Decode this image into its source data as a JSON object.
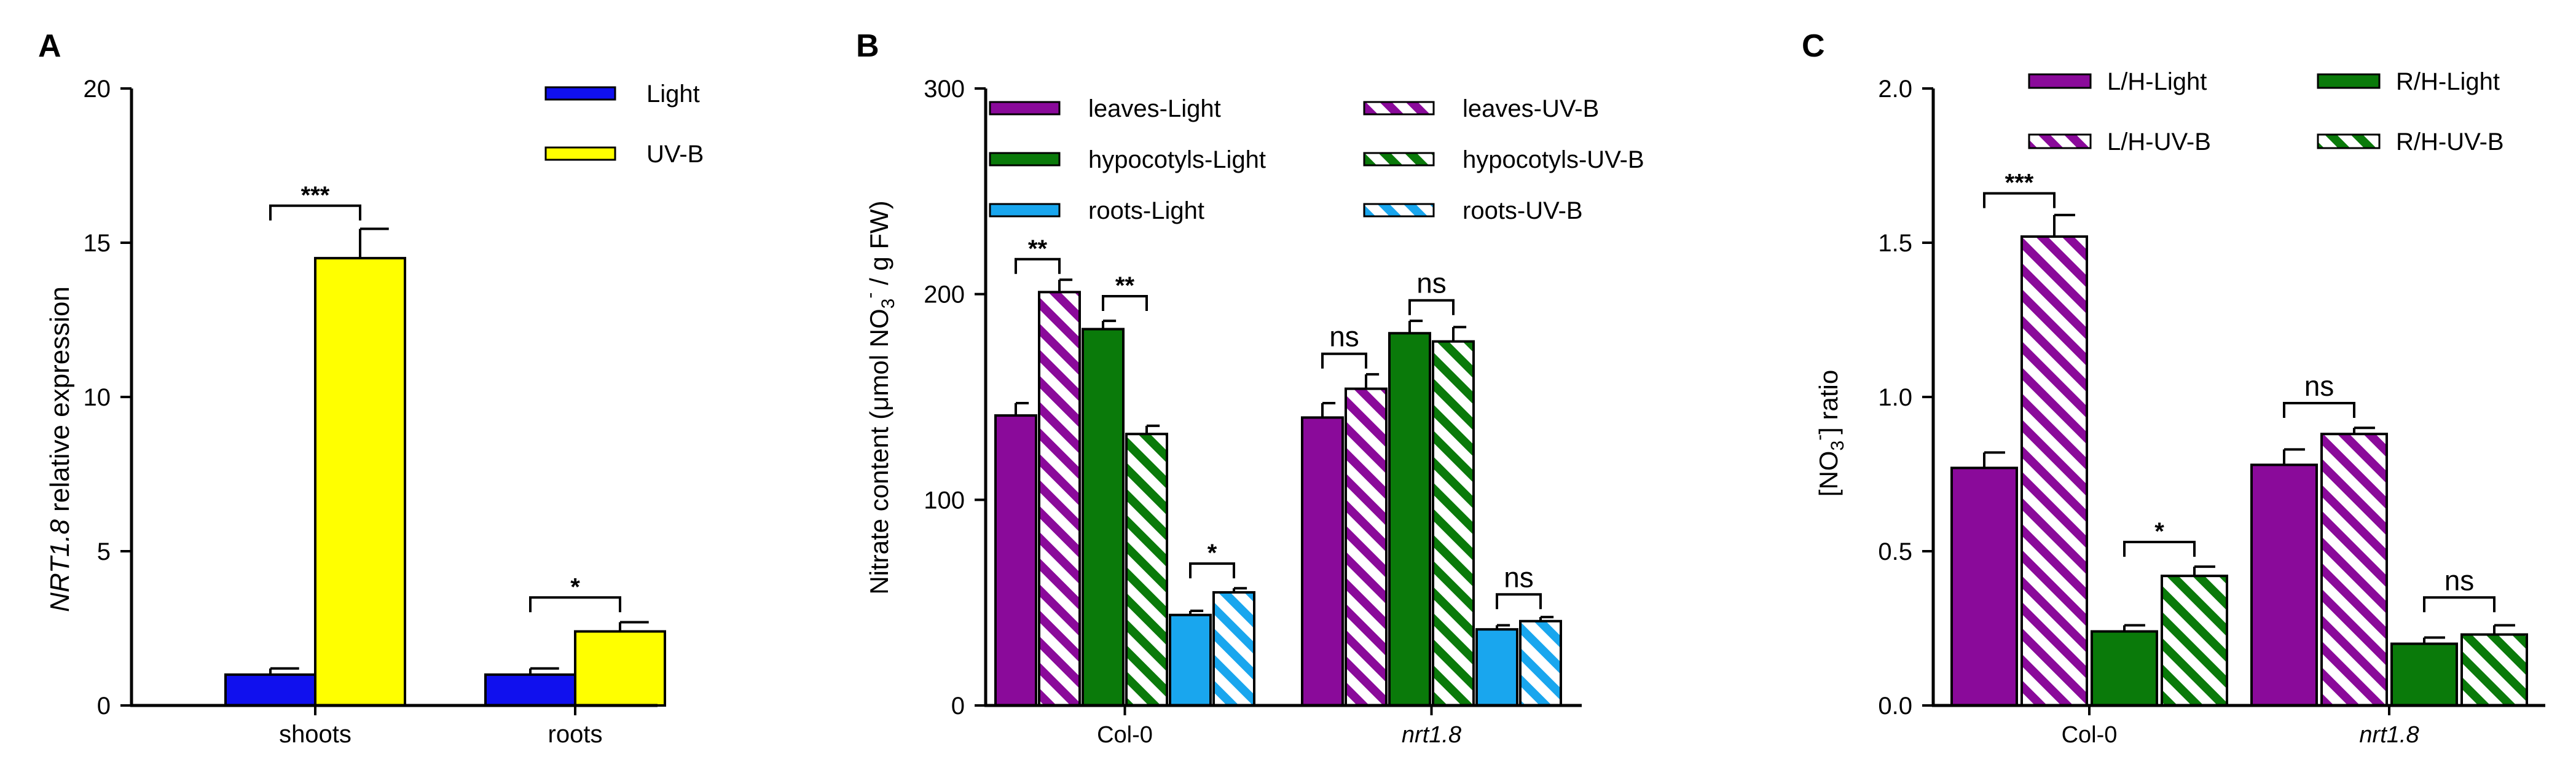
{
  "figure": {
    "panels": [
      "A",
      "B",
      "C"
    ]
  },
  "colors": {
    "blue": "#1010ee",
    "yellow": "#ffff00",
    "purple": "#8a0a9a",
    "green": "#0a7a0a",
    "skyblue": "#19a6ee"
  },
  "chart_data": [
    {
      "panel": "A",
      "type": "bar",
      "ylabel_italic": "NRT1.8",
      "ylabel_rest": " relative expression",
      "ylim": [
        0,
        20
      ],
      "yticks": [
        0,
        5,
        10,
        15,
        20
      ],
      "categories": [
        "shoots",
        "roots"
      ],
      "series": [
        {
          "name": "Light",
          "color": "blue",
          "hatch": false,
          "values": [
            1.0,
            1.0
          ],
          "errors": [
            0.2,
            0.2
          ]
        },
        {
          "name": "UV-B",
          "color": "yellow",
          "hatch": false,
          "values": [
            14.5,
            2.4
          ],
          "errors": [
            0.95,
            0.3
          ]
        }
      ],
      "legend": {
        "position": "top-right",
        "entries": [
          "Light",
          "UV-B"
        ]
      },
      "annotations": [
        {
          "category": 0,
          "from_series": 0,
          "to_series": 1,
          "label": "***",
          "at": 16.2
        },
        {
          "category": 1,
          "from_series": 0,
          "to_series": 1,
          "label": "*",
          "at": 3.5
        }
      ]
    },
    {
      "panel": "B",
      "type": "bar",
      "ylabel": "Nitrate content (μmol NO",
      "ylabel_sub": "3",
      "ylabel_sup": "-",
      "ylabel_tail": " / g FW)",
      "ylim": [
        0,
        300
      ],
      "yticks": [
        0,
        100,
        200,
        300
      ],
      "categories": [
        "Col-0",
        "nrt1.8"
      ],
      "category_italic": [
        false,
        true
      ],
      "series": [
        {
          "name": "leaves-Light",
          "color": "purple",
          "hatch": false,
          "values": [
            141,
            140
          ],
          "errors": [
            6,
            7
          ]
        },
        {
          "name": "leaves-UV-B",
          "color": "purple",
          "hatch": true,
          "values": [
            201,
            154
          ],
          "errors": [
            6,
            7
          ]
        },
        {
          "name": "hypocotyls-Light",
          "color": "green",
          "hatch": false,
          "values": [
            183,
            181
          ],
          "errors": [
            4,
            6
          ]
        },
        {
          "name": "hypocotyls-UV-B",
          "color": "green",
          "hatch": true,
          "values": [
            132,
            177
          ],
          "errors": [
            4,
            7
          ]
        },
        {
          "name": "roots-Light",
          "color": "skyblue",
          "hatch": false,
          "values": [
            44,
            37
          ],
          "errors": [
            2,
            2
          ]
        },
        {
          "name": "roots-UV-B",
          "color": "skyblue",
          "hatch": true,
          "values": [
            55,
            41
          ],
          "errors": [
            2,
            2
          ]
        }
      ],
      "legend": {
        "position": "top",
        "entries": [
          "leaves-Light",
          "leaves-UV-B",
          "hypocotyls-Light",
          "hypocotyls-UV-B",
          "roots-Light",
          "roots-UV-B"
        ]
      },
      "annotations": [
        {
          "category": 0,
          "from_series": 0,
          "to_series": 1,
          "label": "**",
          "at": 217
        },
        {
          "category": 0,
          "from_series": 2,
          "to_series": 3,
          "label": "**",
          "at": 199
        },
        {
          "category": 0,
          "from_series": 4,
          "to_series": 5,
          "label": "*",
          "at": 69
        },
        {
          "category": 1,
          "from_series": 0,
          "to_series": 1,
          "label": "ns",
          "at": 171
        },
        {
          "category": 1,
          "from_series": 2,
          "to_series": 3,
          "label": "ns",
          "at": 197
        },
        {
          "category": 1,
          "from_series": 4,
          "to_series": 5,
          "label": "ns",
          "at": 54
        }
      ]
    },
    {
      "panel": "C",
      "type": "bar",
      "ylabel": "[NO",
      "ylabel_sub": "3",
      "ylabel_sup": "-",
      "ylabel_tail": "] ratio",
      "ylim": [
        0,
        2.0
      ],
      "yticks": [
        "0.0",
        "0.5",
        "1.0",
        "1.5",
        "2.0"
      ],
      "categories": [
        "Col-0",
        "nrt1.8"
      ],
      "category_italic": [
        false,
        true
      ],
      "series": [
        {
          "name": "L/H-Light",
          "color": "purple",
          "hatch": false,
          "values": [
            0.77,
            0.78
          ],
          "errors": [
            0.05,
            0.05
          ]
        },
        {
          "name": "L/H-UV-B",
          "color": "purple",
          "hatch": true,
          "values": [
            1.52,
            0.88
          ],
          "errors": [
            0.07,
            0.02
          ]
        },
        {
          "name": "R/H-Light",
          "color": "green",
          "hatch": false,
          "values": [
            0.24,
            0.2
          ],
          "errors": [
            0.02,
            0.02
          ]
        },
        {
          "name": "R/H-UV-B",
          "color": "green",
          "hatch": true,
          "values": [
            0.42,
            0.23
          ],
          "errors": [
            0.03,
            0.03
          ]
        }
      ],
      "legend": {
        "position": "top",
        "entries": [
          "L/H-Light",
          "R/H-Light",
          "L/H-UV-B",
          "R/H-UV-B"
        ]
      },
      "annotations": [
        {
          "category": 0,
          "from_series": 0,
          "to_series": 1,
          "label": "***",
          "at": 1.66
        },
        {
          "category": 0,
          "from_series": 2,
          "to_series": 3,
          "label": "*",
          "at": 0.53
        },
        {
          "category": 1,
          "from_series": 0,
          "to_series": 1,
          "label": "ns",
          "at": 0.98
        },
        {
          "category": 1,
          "from_series": 2,
          "to_series": 3,
          "label": "ns",
          "at": 0.35
        }
      ]
    }
  ]
}
